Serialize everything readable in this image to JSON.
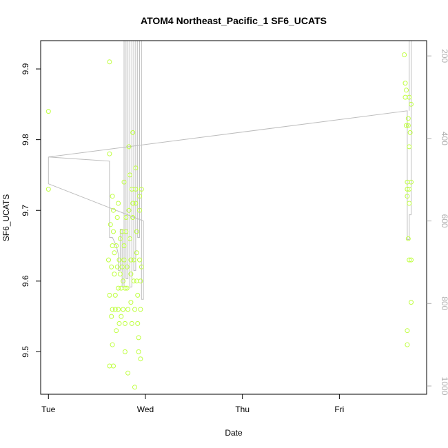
{
  "chart_data": {
    "type": "scatter",
    "title": "ATOM4 Northeast_Pacific_1 SF6_UCATS",
    "xlabel": "Date",
    "ylabel": "SF6_UCATS",
    "x_ticks": [
      {
        "label": "Tue",
        "day": 0
      },
      {
        "label": "Wed",
        "day": 1
      },
      {
        "label": "Thu",
        "day": 2
      },
      {
        "label": "Fri",
        "day": 3
      }
    ],
    "xlim_days": [
      -0.08,
      3.9
    ],
    "ylim": [
      9.44,
      9.94
    ],
    "y_ticks": [
      9.5,
      9.6,
      9.7,
      9.8,
      9.9
    ],
    "y2_ticks": [
      200,
      400,
      600,
      800,
      1000
    ],
    "y2lim": [
      1020,
      163
    ],
    "grid": false,
    "colors": {
      "points": "#bfff3f",
      "path": "#bdbdbd",
      "frame": "#000000",
      "right_axis": "#b0b0b0"
    },
    "series": [
      {
        "marker": "open-circle",
        "points": [
          [
            0.0,
            9.84
          ],
          [
            0.0,
            9.73
          ],
          [
            0.63,
            9.91
          ],
          [
            0.63,
            9.78
          ],
          [
            0.62,
            9.63
          ],
          [
            0.64,
            9.68
          ],
          [
            0.65,
            9.62
          ],
          [
            0.66,
            9.72
          ],
          [
            0.66,
            9.65
          ],
          [
            0.66,
            9.56
          ],
          [
            0.65,
            9.55
          ],
          [
            0.66,
            9.51
          ],
          [
            0.63,
            9.58
          ],
          [
            0.63,
            9.48
          ],
          [
            0.67,
            9.48
          ],
          [
            0.67,
            9.7
          ],
          [
            0.67,
            9.67
          ],
          [
            0.68,
            9.64
          ],
          [
            0.68,
            9.61
          ],
          [
            0.69,
            9.58
          ],
          [
            0.69,
            9.56
          ],
          [
            0.7,
            9.53
          ],
          [
            0.7,
            9.65
          ],
          [
            0.71,
            9.62
          ],
          [
            0.71,
            9.69
          ],
          [
            0.72,
            9.71
          ],
          [
            0.72,
            9.59
          ],
          [
            0.72,
            9.56
          ],
          [
            0.73,
            9.54
          ],
          [
            0.73,
            9.63
          ],
          [
            0.74,
            9.66
          ],
          [
            0.74,
            9.61
          ],
          [
            0.75,
            9.59
          ],
          [
            0.75,
            9.55
          ],
          [
            0.76,
            9.62
          ],
          [
            0.76,
            9.67
          ],
          [
            0.77,
            9.6
          ],
          [
            0.77,
            9.56
          ],
          [
            0.78,
            9.74
          ],
          [
            0.78,
            9.65
          ],
          [
            0.78,
            9.63
          ],
          [
            0.79,
            9.59
          ],
          [
            0.79,
            9.54
          ],
          [
            0.79,
            9.5
          ],
          [
            0.8,
            9.69
          ],
          [
            0.8,
            9.67
          ],
          [
            0.81,
            9.62
          ],
          [
            0.81,
            9.59
          ],
          [
            0.82,
            9.56
          ],
          [
            0.82,
            9.47
          ],
          [
            0.83,
            9.79
          ],
          [
            0.83,
            9.7
          ],
          [
            0.84,
            9.75
          ],
          [
            0.84,
            9.66
          ],
          [
            0.85,
            9.63
          ],
          [
            0.85,
            9.61
          ],
          [
            0.85,
            9.57
          ],
          [
            0.86,
            9.54
          ],
          [
            0.86,
            9.73
          ],
          [
            0.87,
            9.81
          ],
          [
            0.87,
            9.71
          ],
          [
            0.87,
            9.69
          ],
          [
            0.88,
            9.63
          ],
          [
            0.88,
            9.6
          ],
          [
            0.89,
            9.56
          ],
          [
            0.89,
            9.45
          ],
          [
            0.9,
            9.76
          ],
          [
            0.9,
            9.73
          ],
          [
            0.9,
            9.71
          ],
          [
            0.91,
            9.67
          ],
          [
            0.91,
            9.64
          ],
          [
            0.91,
            9.6
          ],
          [
            0.92,
            9.58
          ],
          [
            0.92,
            9.54
          ],
          [
            0.93,
            9.52
          ],
          [
            0.93,
            9.5
          ],
          [
            0.94,
            9.72
          ],
          [
            0.94,
            9.7
          ],
          [
            0.94,
            9.63
          ],
          [
            0.95,
            9.6
          ],
          [
            0.95,
            9.56
          ],
          [
            0.95,
            9.49
          ],
          [
            0.96,
            9.73
          ],
          [
            0.96,
            9.62
          ],
          [
            3.67,
            9.92
          ],
          [
            3.68,
            9.88
          ],
          [
            3.69,
            9.87
          ],
          [
            3.68,
            9.86
          ],
          [
            3.72,
            9.86
          ],
          [
            3.74,
            9.85
          ],
          [
            3.71,
            9.83
          ],
          [
            3.69,
            9.82
          ],
          [
            3.71,
            9.82
          ],
          [
            3.73,
            9.81
          ],
          [
            3.72,
            9.79
          ],
          [
            3.7,
            9.74
          ],
          [
            3.74,
            9.74
          ],
          [
            3.7,
            9.73
          ],
          [
            3.72,
            9.73
          ],
          [
            3.7,
            9.72
          ],
          [
            3.72,
            9.71
          ],
          [
            3.71,
            9.66
          ],
          [
            3.72,
            9.63
          ],
          [
            3.74,
            9.63
          ],
          [
            3.74,
            9.57
          ],
          [
            3.7,
            9.53
          ],
          [
            3.7,
            9.51
          ]
        ]
      }
    ]
  }
}
